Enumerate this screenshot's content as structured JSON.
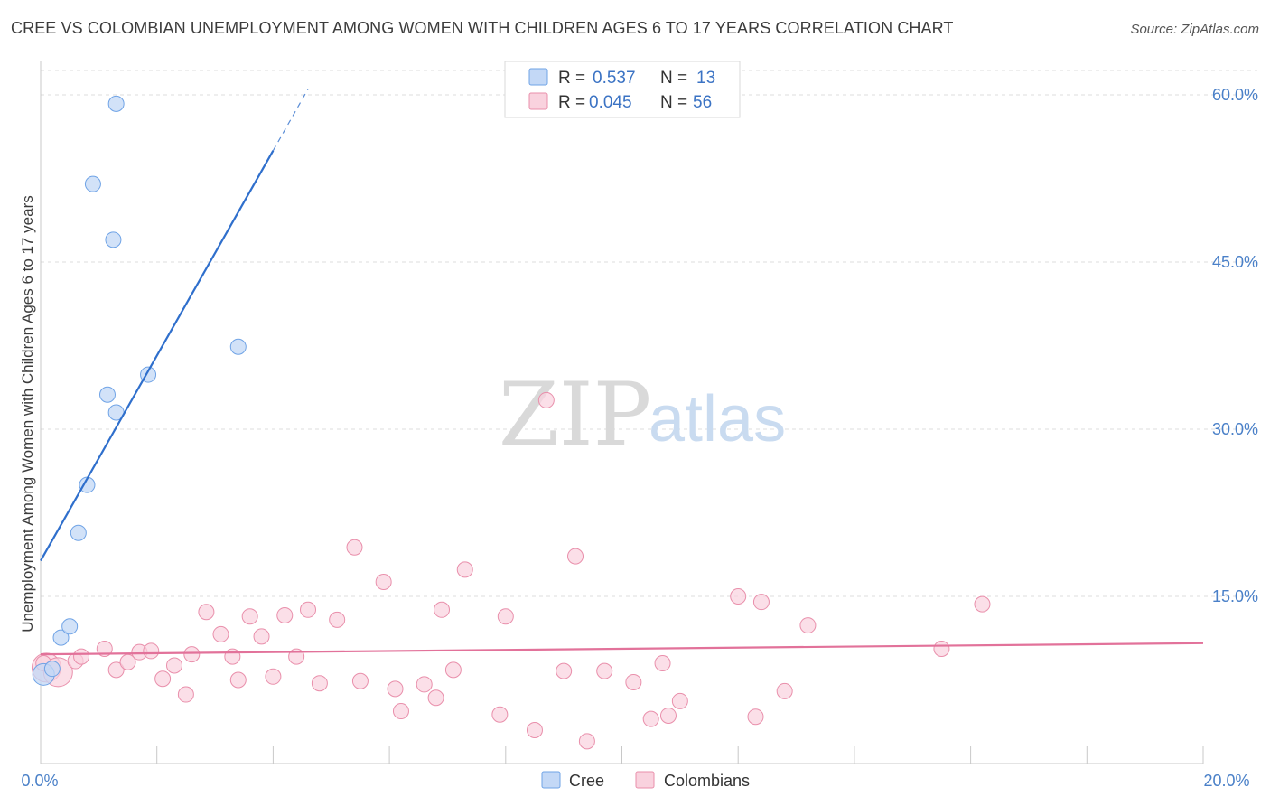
{
  "title": "CREE VS COLOMBIAN UNEMPLOYMENT AMONG WOMEN WITH CHILDREN AGES 6 TO 17 YEARS CORRELATION CHART",
  "source": "Source: ZipAtlas.com",
  "watermark": {
    "zip": "ZIP",
    "atlas": "atlas"
  },
  "colors": {
    "cree": "#6fa3e6",
    "cree_fill": "#c3d8f6",
    "colombians": "#e98fab",
    "colombians_fill": "#f9d2de",
    "cree_line": "#2f6fcc",
    "colombians_line": "#e2729a"
  },
  "legend": {
    "cree": {
      "r_label": "R = ",
      "r_value": "0.537",
      "n_label": "N = ",
      "n_value": "13"
    },
    "colombians": {
      "r_label": "R = ",
      "r_value": "0.045",
      "n_label": "N = ",
      "n_value": "56"
    }
  },
  "bottom_legend": {
    "cree": "Cree",
    "colombians": "Colombians"
  },
  "chart_data": {
    "type": "scatter",
    "title": "CREE VS COLOMBIAN UNEMPLOYMENT AMONG WOMEN WITH CHILDREN AGES 6 TO 17 YEARS CORRELATION CHART",
    "xlabel": "",
    "ylabel": "Unemployment Among Women with Children Ages 6 to 17 years",
    "xlim": [
      0,
      20
    ],
    "ylim": [
      0,
      63
    ],
    "x_tick_labels": [
      "0.0%",
      "20.0%"
    ],
    "y_ticks": [
      15,
      30,
      45,
      60
    ],
    "y_tick_labels": [
      "15.0%",
      "30.0%",
      "45.0%",
      "60.0%"
    ],
    "series": [
      {
        "name": "Cree",
        "points": [
          [
            0.05,
            8.0
          ],
          [
            0.2,
            8.5
          ],
          [
            0.35,
            11.3
          ],
          [
            0.5,
            12.3
          ],
          [
            0.65,
            20.7
          ],
          [
            0.8,
            25.0
          ],
          [
            1.3,
            31.5
          ],
          [
            1.15,
            33.1
          ],
          [
            1.85,
            34.9
          ],
          [
            3.4,
            37.4
          ],
          [
            1.25,
            47.0
          ],
          [
            0.9,
            52.0
          ],
          [
            1.3,
            59.2
          ]
        ],
        "trend": {
          "x0": 0.0,
          "y0": 18.2,
          "x1": 4.0,
          "y1": 55.0,
          "x1_dashed": 4.6
        }
      },
      {
        "name": "Colombians",
        "points": [
          [
            0.1,
            8.6
          ],
          [
            0.3,
            8.2
          ],
          [
            0.6,
            9.2
          ],
          [
            0.7,
            9.6
          ],
          [
            1.1,
            10.3
          ],
          [
            1.3,
            8.4
          ],
          [
            1.5,
            9.1
          ],
          [
            1.7,
            10.0
          ],
          [
            1.9,
            10.1
          ],
          [
            2.1,
            7.6
          ],
          [
            2.3,
            8.8
          ],
          [
            2.5,
            6.2
          ],
          [
            2.6,
            9.8
          ],
          [
            2.85,
            13.6
          ],
          [
            3.1,
            11.6
          ],
          [
            3.3,
            9.6
          ],
          [
            3.4,
            7.5
          ],
          [
            3.6,
            13.2
          ],
          [
            3.8,
            11.4
          ],
          [
            4.0,
            7.8
          ],
          [
            4.2,
            13.3
          ],
          [
            4.4,
            9.6
          ],
          [
            4.6,
            13.8
          ],
          [
            4.8,
            7.2
          ],
          [
            5.1,
            12.9
          ],
          [
            5.4,
            19.4
          ],
          [
            5.5,
            7.4
          ],
          [
            5.9,
            16.3
          ],
          [
            6.1,
            6.7
          ],
          [
            6.2,
            4.7
          ],
          [
            6.6,
            7.1
          ],
          [
            6.8,
            5.9
          ],
          [
            6.9,
            13.8
          ],
          [
            7.1,
            8.4
          ],
          [
            7.3,
            17.4
          ],
          [
            7.9,
            4.4
          ],
          [
            8.0,
            13.2
          ],
          [
            8.5,
            3.0
          ],
          [
            8.7,
            32.6
          ],
          [
            9.0,
            8.3
          ],
          [
            9.4,
            2.0
          ],
          [
            9.7,
            8.3
          ],
          [
            9.2,
            18.6
          ],
          [
            10.2,
            7.3
          ],
          [
            10.5,
            4.0
          ],
          [
            10.7,
            9.0
          ],
          [
            10.8,
            4.3
          ],
          [
            11.0,
            5.6
          ],
          [
            12.0,
            15.0
          ],
          [
            12.3,
            4.2
          ],
          [
            12.4,
            14.5
          ],
          [
            12.8,
            6.5
          ],
          [
            13.2,
            12.4
          ],
          [
            15.5,
            10.3
          ],
          [
            16.2,
            14.3
          ],
          [
            0.05,
            9.0
          ]
        ],
        "trend": {
          "x0": 0.0,
          "y0": 9.8,
          "x1": 20.0,
          "y1": 10.8
        }
      }
    ]
  }
}
